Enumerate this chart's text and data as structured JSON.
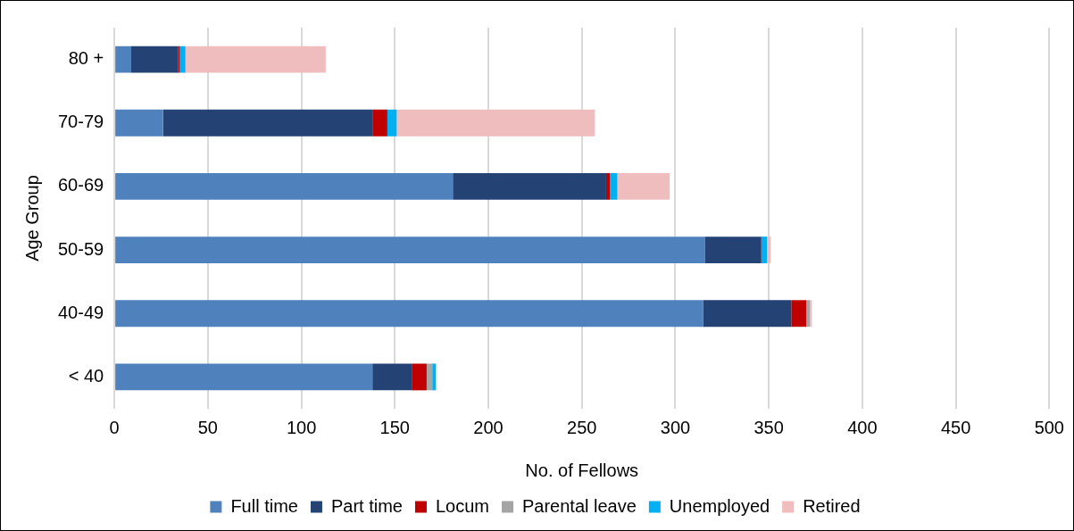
{
  "chart_data": {
    "type": "bar",
    "orientation": "horizontal",
    "stacked": true,
    "xlabel": "No. of Fellows",
    "ylabel": "Age Group",
    "categories": [
      "80 +",
      "70-79",
      "60-69",
      "50-59",
      "40-49",
      "< 40"
    ],
    "series": [
      {
        "name": "Full time",
        "color": "#4f81bd",
        "values": [
          9,
          26,
          181,
          316,
          315,
          138
        ]
      },
      {
        "name": "Part time",
        "color": "#254274",
        "values": [
          25,
          112,
          82,
          30,
          47,
          21
        ]
      },
      {
        "name": "Locum",
        "color": "#c00000",
        "values": [
          1,
          8,
          2,
          0,
          8,
          8
        ]
      },
      {
        "name": "Parental leave",
        "color": "#a5a5a5",
        "values": [
          0,
          0,
          0,
          0,
          2,
          3
        ]
      },
      {
        "name": "Unemployed",
        "color": "#00b0f0",
        "values": [
          3,
          5,
          4,
          3,
          0,
          2
        ]
      },
      {
        "name": "Retired",
        "color": "#f0bdbe",
        "values": [
          75,
          106,
          28,
          2,
          1,
          0
        ]
      }
    ],
    "xlim": [
      0,
      500
    ],
    "xticks": [
      0,
      50,
      100,
      150,
      200,
      250,
      300,
      350,
      400,
      450,
      500
    ],
    "grid": "x",
    "legend": "bottom"
  }
}
